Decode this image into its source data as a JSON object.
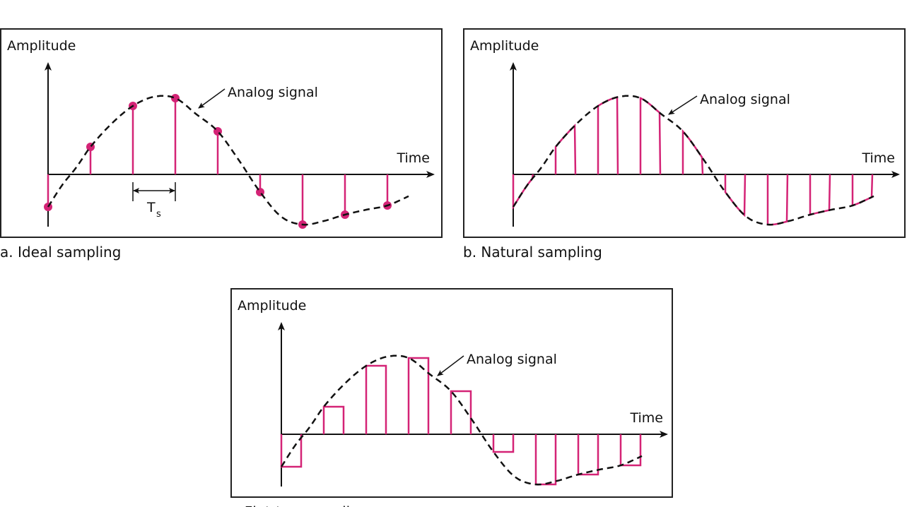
{
  "colors": {
    "sample": "#d42376",
    "signal": "#111111",
    "frame": "#222222"
  },
  "panels": [
    {
      "id": "a",
      "y_label": "Amplitude",
      "x_label": "Time",
      "signal_label": "Analog signal",
      "caption": "a. Ideal sampling",
      "period_label": "T",
      "period_subscript": "s",
      "style": "ideal"
    },
    {
      "id": "b",
      "y_label": "Amplitude",
      "x_label": "Time",
      "signal_label": "Analog signal",
      "caption": "b. Natural sampling",
      "style": "natural"
    },
    {
      "id": "c",
      "y_label": "Amplitude",
      "x_label": "Time",
      "signal_label": "Analog signal",
      "caption": "c. Flat-top sampling",
      "style": "flat-top"
    }
  ]
}
